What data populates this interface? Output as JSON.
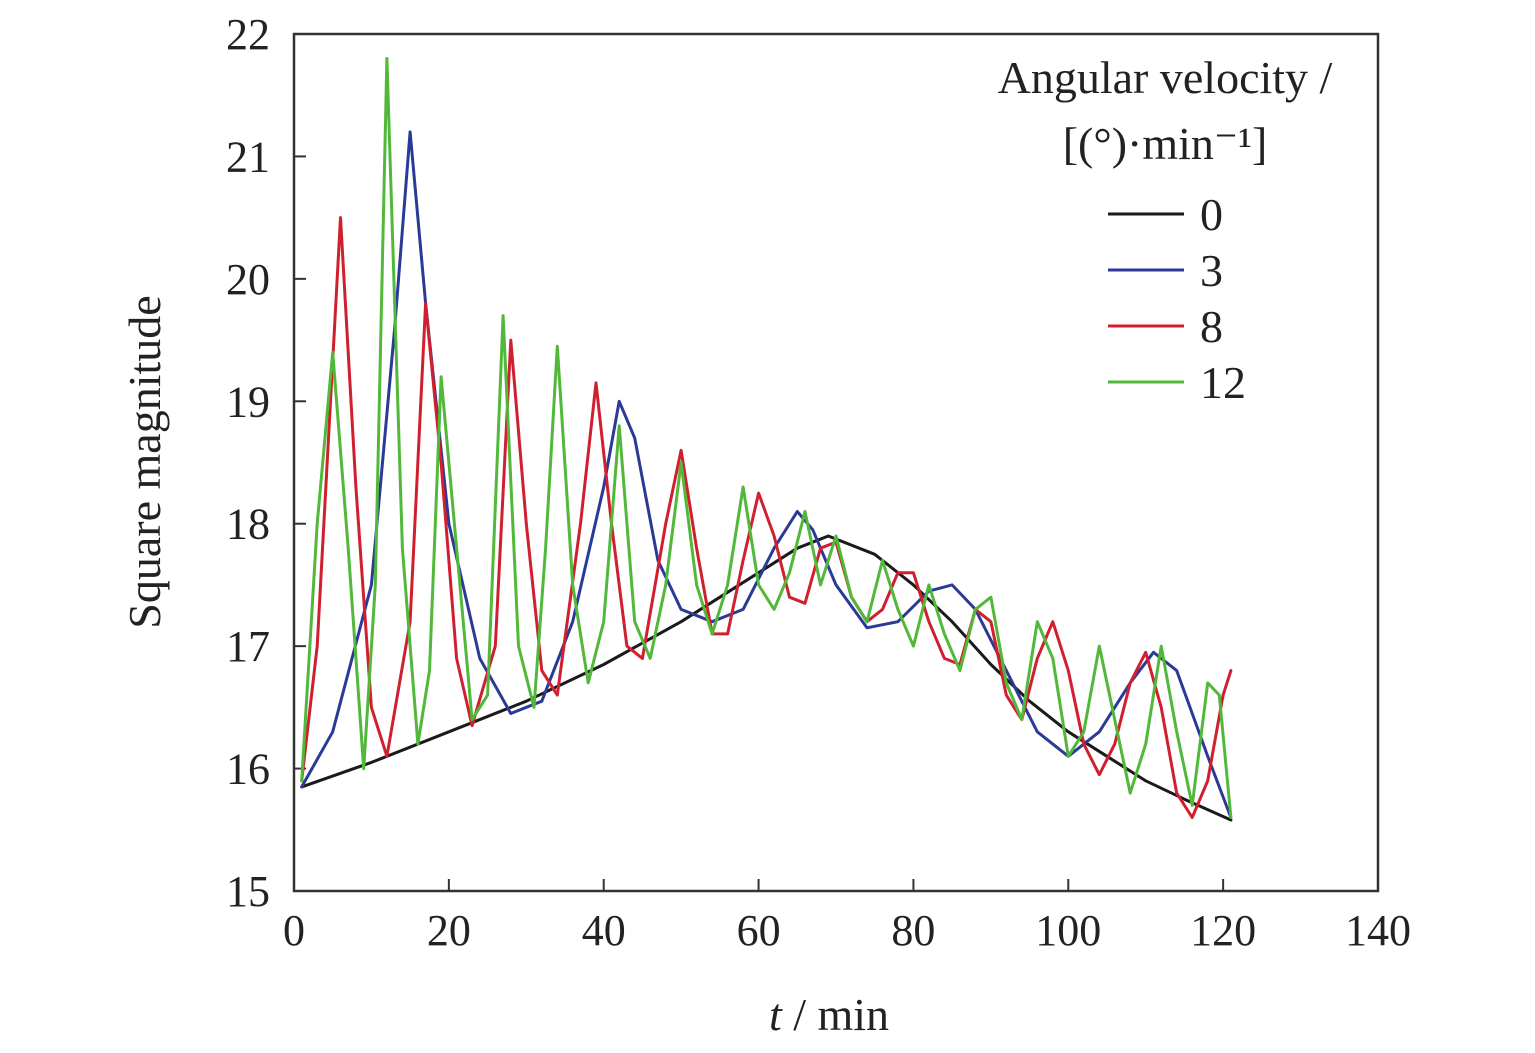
{
  "chart_data": {
    "type": "line",
    "xlabel_italic": "t",
    "xlabel_rest": " / min",
    "ylabel": "Square magnitude",
    "xlim": [
      0,
      140
    ],
    "ylim": [
      15,
      22
    ],
    "xticks": [
      "0",
      "20",
      "40",
      "60",
      "80",
      "100",
      "120",
      "140"
    ],
    "yticks": [
      "15",
      "16",
      "17",
      "18",
      "19",
      "20",
      "21",
      "22"
    ],
    "grid": false,
    "legend_position": "top-right",
    "legend_title_line1": "Angular velocity /",
    "legend_title_line2": "[(°)·min⁻¹]",
    "series": [
      {
        "name": "0",
        "color": "#1a1a1a",
        "x": [
          1,
          10,
          20,
          30,
          40,
          50,
          60,
          65,
          69,
          75,
          80,
          85,
          90,
          95,
          100,
          105,
          110,
          115,
          121
        ],
        "y": [
          15.85,
          16.05,
          16.3,
          16.55,
          16.85,
          17.2,
          17.6,
          17.8,
          17.9,
          17.75,
          17.5,
          17.2,
          16.85,
          16.55,
          16.3,
          16.1,
          15.9,
          15.75,
          15.58
        ]
      },
      {
        "name": "3",
        "color": "#2b3a96",
        "x": [
          1,
          5,
          10,
          13,
          15,
          17,
          20,
          24,
          28,
          32,
          36,
          40,
          42,
          44,
          47,
          50,
          54,
          58,
          62,
          65,
          67,
          70,
          74,
          78,
          82,
          85,
          88,
          92,
          96,
          100,
          104,
          108,
          111,
          114,
          118,
          121
        ],
        "y": [
          15.85,
          16.3,
          17.5,
          19.6,
          21.2,
          19.8,
          18.0,
          16.9,
          16.45,
          16.55,
          17.2,
          18.3,
          19.0,
          18.7,
          17.7,
          17.3,
          17.2,
          17.3,
          17.8,
          18.1,
          17.95,
          17.5,
          17.15,
          17.2,
          17.45,
          17.5,
          17.3,
          16.8,
          16.3,
          16.1,
          16.3,
          16.7,
          16.95,
          16.8,
          16.1,
          15.6
        ]
      },
      {
        "name": "8",
        "color": "#d02030",
        "x": [
          1,
          3,
          6,
          8,
          10,
          12,
          15,
          17,
          19,
          21,
          23,
          26,
          28,
          30,
          32,
          34,
          37,
          39,
          41,
          43,
          45,
          48,
          50,
          52,
          54,
          56,
          58,
          60,
          62,
          64,
          66,
          68,
          70,
          72,
          74,
          76,
          78,
          80,
          82,
          84,
          86,
          88,
          90,
          92,
          94,
          96,
          98,
          100,
          102,
          104,
          106,
          108,
          110,
          112,
          114,
          116,
          118,
          120,
          121
        ],
        "y": [
          15.9,
          17.0,
          20.5,
          18.3,
          16.5,
          16.1,
          17.2,
          19.8,
          18.5,
          16.9,
          16.35,
          17.0,
          19.5,
          18.0,
          16.8,
          16.6,
          18.0,
          19.15,
          18.0,
          17.0,
          16.9,
          18.0,
          18.6,
          17.8,
          17.1,
          17.1,
          17.7,
          18.25,
          17.9,
          17.4,
          17.35,
          17.8,
          17.85,
          17.4,
          17.2,
          17.3,
          17.6,
          17.6,
          17.2,
          16.9,
          16.85,
          17.3,
          17.2,
          16.6,
          16.4,
          16.9,
          17.2,
          16.8,
          16.2,
          15.95,
          16.2,
          16.7,
          16.95,
          16.5,
          15.8,
          15.6,
          15.9,
          16.6,
          16.8
        ]
      },
      {
        "name": "12",
        "color": "#52b83a",
        "x": [
          1,
          3,
          5,
          7,
          9,
          10.5,
          12,
          14,
          16,
          17.5,
          19,
          21,
          23,
          25,
          27,
          29,
          31,
          32.5,
          34,
          36,
          38,
          40,
          42,
          44,
          46,
          48,
          50,
          52,
          54,
          56,
          58,
          60,
          62,
          64,
          66,
          68,
          70,
          72,
          74,
          76,
          78,
          80,
          82,
          84,
          86,
          88,
          90,
          92,
          94,
          96,
          98,
          100,
          102,
          104,
          106,
          108,
          110,
          112,
          114,
          116,
          118,
          119.5,
          121
        ],
        "y": [
          15.9,
          18.0,
          19.4,
          17.8,
          16.0,
          17.5,
          21.8,
          17.8,
          16.2,
          16.8,
          19.2,
          17.8,
          16.4,
          16.6,
          19.7,
          17.0,
          16.5,
          17.8,
          19.45,
          17.5,
          16.7,
          17.2,
          18.8,
          17.2,
          16.9,
          17.5,
          18.5,
          17.5,
          17.1,
          17.5,
          18.3,
          17.5,
          17.3,
          17.6,
          18.1,
          17.5,
          17.9,
          17.4,
          17.2,
          17.7,
          17.3,
          17.0,
          17.5,
          17.1,
          16.8,
          17.3,
          17.4,
          16.7,
          16.4,
          17.2,
          16.9,
          16.1,
          16.3,
          17.0,
          16.4,
          15.8,
          16.2,
          17.0,
          16.3,
          15.7,
          16.7,
          16.6,
          15.6
        ]
      }
    ]
  }
}
